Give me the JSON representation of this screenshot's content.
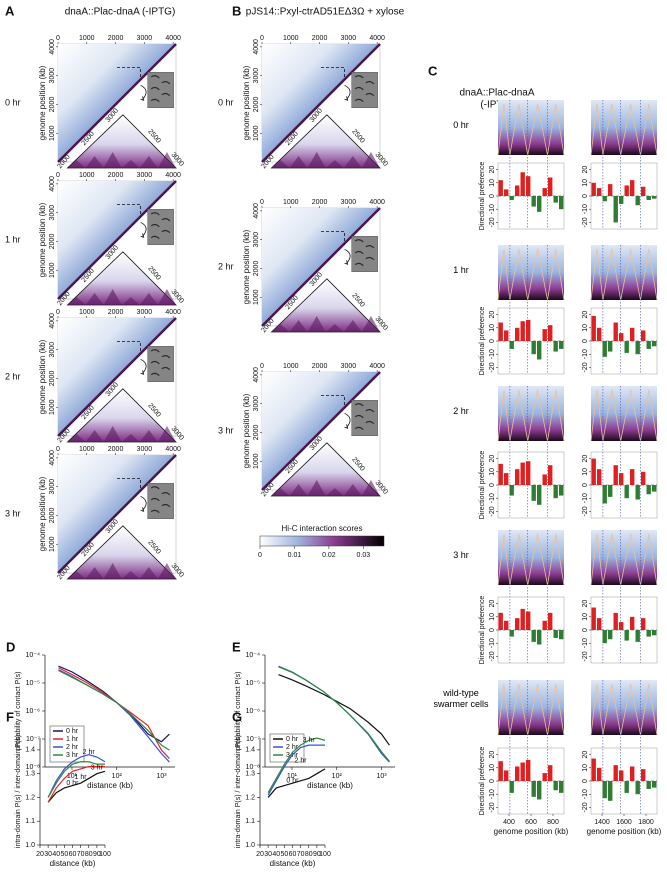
{
  "panels": {
    "A": {
      "label": "A",
      "title": "dnaA::Plac-dnaA (-IPTG)",
      "rows": [
        "0 hr",
        "1 hr",
        "2 hr",
        "3 hr"
      ],
      "ylabel": "genome position (kb)",
      "ticks": [
        0,
        1000,
        2000,
        3000,
        4000
      ],
      "axis_lim": [
        0,
        4100
      ],
      "zoom_left_ticks": [
        2000,
        2500,
        3000
      ],
      "zoom_right_ticks": [
        2500,
        3000
      ],
      "zoom_lim": [
        1950,
        3100
      ]
    },
    "B": {
      "label": "B",
      "title": "pJS14::Pxyl-ctrAD51EΔ3Ω + xylose",
      "rows": [
        "0 hr",
        "2 hr",
        "3 hr"
      ],
      "ylabel": "genome position (kb)",
      "ticks": [
        0,
        1000,
        2000,
        3000,
        4000
      ],
      "axis_lim": [
        0,
        4100
      ],
      "zoom_left_ticks": [
        2000,
        2500,
        3000
      ],
      "zoom_right_ticks": [
        2500,
        3000
      ],
      "zoom_lim": [
        1950,
        3100
      ],
      "colorbar": {
        "title": "Hi-C interaction scores",
        "ticks": [
          0,
          0.01,
          0.02,
          0.03
        ],
        "lim": [
          0,
          0.036
        ]
      }
    },
    "C": {
      "label": "C",
      "title": [
        "dnaA::Plac-dnaA",
        "(-IPTG)"
      ],
      "rows": [
        "0 hr",
        "1 hr",
        "2 hr",
        "3 hr",
        "wild-type swarmer cells"
      ],
      "ylabel": "Directional preference",
      "ylim": [
        -25,
        25
      ],
      "yticks": [
        20,
        10,
        0,
        -10,
        -20
      ],
      "xlabel": "genome position (kb)",
      "pos_color": "#e02020",
      "neg_color": "#2e7d32",
      "columns": [
        {
          "x": [
            300,
            350,
            400,
            450,
            500,
            550,
            600,
            650,
            700,
            750,
            800,
            850
          ],
          "xlim": [
            300,
            900
          ],
          "xticks": [
            400,
            600,
            800
          ],
          "profiles": [
            [
              12,
              5,
              -3,
              8,
              18,
              15,
              -8,
              -12,
              6,
              14,
              -5,
              -10
            ],
            [
              14,
              8,
              -6,
              10,
              15,
              16,
              -10,
              -14,
              9,
              12,
              -8,
              -6
            ],
            [
              16,
              9,
              -8,
              12,
              17,
              18,
              -12,
              -15,
              8,
              15,
              -10,
              -8
            ],
            [
              13,
              7,
              -5,
              9,
              16,
              14,
              -9,
              -11,
              7,
              13,
              -6,
              -7
            ],
            [
              15,
              8,
              -9,
              11,
              14,
              16,
              -12,
              -14,
              6,
              12,
              -7,
              -9
            ]
          ]
        },
        {
          "x": [
            1300,
            1350,
            1400,
            1450,
            1500,
            1550,
            1600,
            1650,
            1700,
            1750,
            1800,
            1850
          ],
          "xlim": [
            1300,
            1900
          ],
          "xticks": [
            1400,
            1600,
            1800
          ],
          "profiles": [
            [
              10,
              6,
              -4,
              9,
              -20,
              -6,
              8,
              12,
              -7,
              7,
              -3,
              -2
            ],
            [
              19,
              10,
              -12,
              -8,
              14,
              6,
              -9,
              10,
              -10,
              8,
              -6,
              -4
            ],
            [
              20,
              12,
              -14,
              -9,
              15,
              9,
              -10,
              12,
              -11,
              10,
              -7,
              -5
            ],
            [
              17,
              9,
              -10,
              -7,
              13,
              6,
              -8,
              10,
              -9,
              9,
              -5,
              -4
            ],
            [
              17,
              10,
              -13,
              -15,
              12,
              8,
              -9,
              11,
              -10,
              9,
              -6,
              -5
            ]
          ]
        }
      ]
    }
  },
  "chart_data": [
    {
      "type": "line",
      "label": "D",
      "xlabel": "distance (kb)",
      "ylabel": "probability of contact P(s)",
      "log_x": true,
      "log_y": true,
      "legend": "lower left",
      "xlim": [
        2.5,
        2000
      ],
      "ylim": [
        1e-08,
        0.0001
      ],
      "xticks": [
        {
          "value": 10,
          "label": "10¹"
        },
        {
          "value": 100,
          "label": "10²"
        },
        {
          "value": 1000,
          "label": "10³"
        }
      ],
      "yticks": [
        {
          "value": 0.0001,
          "label": "10⁻⁴"
        },
        {
          "value": 1e-05,
          "label": "10⁻⁵"
        },
        {
          "value": 1e-06,
          "label": "10⁻⁶"
        },
        {
          "value": 1e-07,
          "label": "10⁻⁷"
        },
        {
          "value": 1e-08,
          "label": "10⁻⁸"
        }
      ],
      "x": [
        5,
        10,
        20,
        50,
        100,
        200,
        500,
        1000,
        1500
      ],
      "series": [
        {
          "name": "0 hr",
          "color": "#1b1464",
          "values": [
            4e-05,
            2.5e-05,
            1.3e-05,
            5e-06,
            2e-06,
            8e-07,
            1.5e-07,
            8e-08,
            1.5e-07
          ]
        },
        {
          "name": "1 hr",
          "color": "#e3262b",
          "values": [
            3.5e-05,
            2e-05,
            1.1e-05,
            4.5e-06,
            2e-06,
            9e-07,
            3e-07,
            4e-08,
            2e-08
          ]
        },
        {
          "name": "2 hr",
          "color": "#3a4fd8",
          "values": [
            3e-05,
            1.7e-05,
            9e-06,
            4e-06,
            2e-06,
            7e-07,
            1.2e-07,
            3e-08,
            1.5e-08
          ]
        },
        {
          "name": "3 hr",
          "color": "#2e8b3a",
          "values": [
            2.8e-05,
            1.6e-05,
            9e-06,
            4e-06,
            2e-06,
            8e-07,
            2e-07,
            6e-08,
            4e-08
          ]
        }
      ]
    },
    {
      "type": "line",
      "label": "E",
      "xlabel": "distance (kb)",
      "ylabel": "probability of contact P(s)",
      "log_x": true,
      "log_y": true,
      "legend": "lower left",
      "xlim": [
        2.5,
        2000
      ],
      "ylim": [
        1e-08,
        0.0001
      ],
      "xticks": [
        {
          "value": 10,
          "label": "10¹"
        },
        {
          "value": 100,
          "label": "10²"
        },
        {
          "value": 1000,
          "label": "10³"
        }
      ],
      "yticks": [
        {
          "value": 0.0001,
          "label": "10⁻⁴"
        },
        {
          "value": 1e-05,
          "label": "10⁻⁵"
        },
        {
          "value": 1e-06,
          "label": "10⁻⁶"
        },
        {
          "value": 1e-07,
          "label": "10⁻⁷"
        },
        {
          "value": 1e-08,
          "label": "10⁻⁸"
        }
      ],
      "x": [
        5,
        10,
        20,
        50,
        100,
        200,
        500,
        1000,
        1500
      ],
      "series": [
        {
          "name": "0 hr",
          "color": "#111111",
          "values": [
            2e-05,
            1.3e-05,
            8e-06,
            4e-06,
            2.2e-06,
            1.2e-06,
            4e-07,
            1.5e-07,
            6e-08
          ]
        },
        {
          "name": "2 hr",
          "color": "#3a4fd8",
          "values": [
            4e-05,
            2.5e-05,
            1.3e-05,
            5e-06,
            2e-06,
            7e-07,
            1.5e-07,
            3e-08,
            1.5e-08
          ]
        },
        {
          "name": "3 hr",
          "color": "#2e8b3a",
          "values": [
            3.8e-05,
            2.4e-05,
            1.3e-05,
            5e-06,
            2e-06,
            7e-07,
            1.6e-07,
            3.5e-08,
            1.6e-08
          ]
        }
      ]
    },
    {
      "type": "line",
      "label": "F",
      "xlabel": "distance (kb)",
      "ylabel": "intra-domain P(s) / inter-domain P(s)",
      "log_x": false,
      "log_y": false,
      "legend": "inline",
      "xlim": [
        20,
        100
      ],
      "ylim": [
        1,
        1.45
      ],
      "xticks": [
        20,
        30,
        40,
        50,
        60,
        70,
        80,
        90,
        100
      ],
      "yticks": [
        {
          "value": 1,
          "label": "1.0"
        },
        1.1,
        1.2,
        1.3,
        1.4
      ],
      "x": [
        30,
        40,
        50,
        60,
        70,
        80,
        90,
        100
      ],
      "series": [
        {
          "name": "0 hr",
          "color": "#111111",
          "values": [
            1.18,
            1.22,
            1.24,
            1.25,
            1.26,
            1.28,
            1.3,
            1.31
          ]
        },
        {
          "name": "1 hr",
          "color": "#e3262b",
          "values": [
            1.18,
            1.24,
            1.28,
            1.31,
            1.32,
            1.33,
            1.33,
            1.33
          ]
        },
        {
          "name": "2 hr",
          "color": "#3a4fd8",
          "values": [
            1.2,
            1.27,
            1.32,
            1.35,
            1.37,
            1.38,
            1.37,
            1.35
          ]
        },
        {
          "name": "3 hr",
          "color": "#2e8b3a",
          "values": [
            1.2,
            1.26,
            1.31,
            1.34,
            1.35,
            1.35,
            1.34,
            1.34
          ]
        }
      ]
    },
    {
      "type": "line",
      "label": "G",
      "xlabel": "distance (kb)",
      "ylabel": "intra-domain P(s) / inter-domain P(s)",
      "log_x": false,
      "log_y": false,
      "legend": "inline",
      "xlim": [
        20,
        100
      ],
      "ylim": [
        1,
        1.45
      ],
      "xticks": [
        20,
        30,
        40,
        50,
        60,
        70,
        80,
        90,
        100
      ],
      "yticks": [
        {
          "value": 1,
          "label": "1.0"
        },
        1.1,
        1.2,
        1.3,
        1.4
      ],
      "x": [
        30,
        40,
        50,
        60,
        70,
        80,
        90,
        100
      ],
      "series": [
        {
          "name": "0 hr",
          "color": "#111111",
          "values": [
            1.2,
            1.24,
            1.25,
            1.26,
            1.27,
            1.28,
            1.3,
            1.32
          ]
        },
        {
          "name": "2 hr",
          "color": "#3a4fd8",
          "values": [
            1.21,
            1.27,
            1.33,
            1.38,
            1.41,
            1.42,
            1.42,
            1.42
          ]
        },
        {
          "name": "3 hr",
          "color": "#2e8b3a",
          "values": [
            1.22,
            1.28,
            1.34,
            1.39,
            1.42,
            1.44,
            1.45,
            1.44
          ]
        }
      ]
    }
  ]
}
